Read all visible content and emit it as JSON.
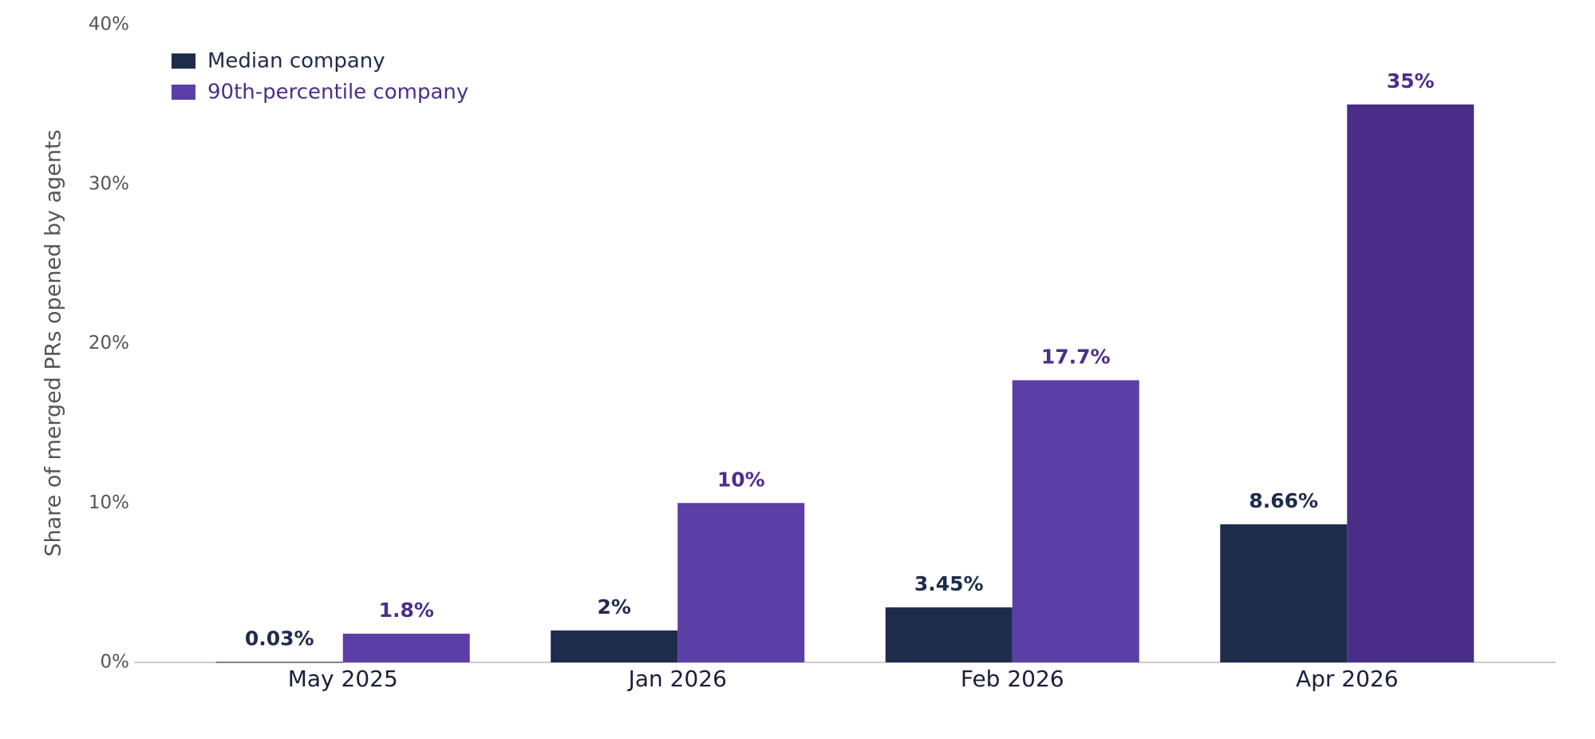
{
  "chart_data": {
    "type": "bar",
    "y_label": "Share of merged PRs opened by agents",
    "categories": [
      "May 2025",
      "Jan 2026",
      "Feb 2026",
      "Apr 2026"
    ],
    "series": [
      {
        "name": "Median company",
        "color": "#1e2b4b",
        "values": [
          0.03,
          2,
          3.45,
          8.66
        ],
        "value_labels": [
          "0.03%",
          "2%",
          "3.45%",
          "8.66%"
        ]
      },
      {
        "name": "90th-percentile company",
        "color": "#5b3ea6",
        "colors": [
          "#5b3ea6",
          "#5b3ea6",
          "#5b3ea6",
          "#4a2d87"
        ],
        "label_color": "#4b2e8a",
        "values": [
          1.8,
          10,
          17.7,
          35
        ],
        "value_labels": [
          "1.8%",
          "10%",
          "17.7%",
          "35%"
        ]
      }
    ],
    "ylim": [
      0,
      40
    ],
    "yticks": [
      {
        "value": 0,
        "label": "0%"
      },
      {
        "value": 10,
        "label": "10%"
      },
      {
        "value": 20,
        "label": "20%"
      },
      {
        "value": 30,
        "label": "30%"
      },
      {
        "value": 40,
        "label": "40%"
      }
    ],
    "grid": false,
    "legend": "upper-left"
  }
}
